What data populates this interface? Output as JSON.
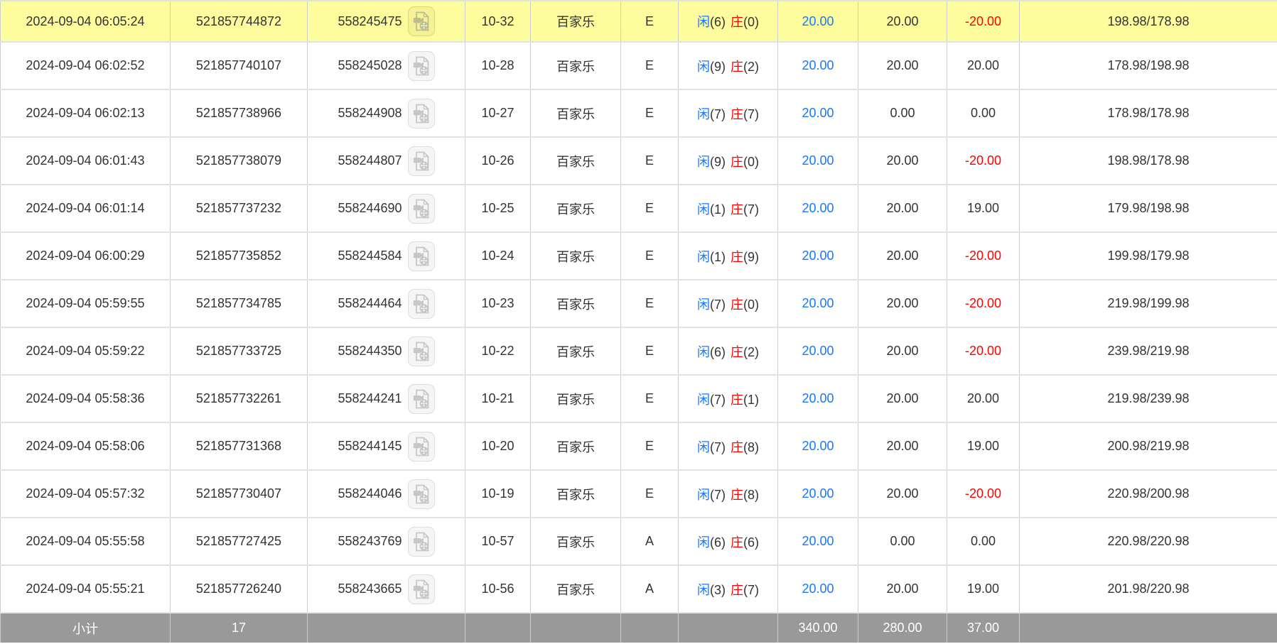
{
  "colors": {
    "highlight_row_bg": "#fdfd9e",
    "blue": "#1677ff",
    "red": "#ff0000",
    "text": "#333333",
    "border": "#cccccc",
    "footer_bg": "#999999",
    "footer_text": "#ffffff"
  },
  "betting_table": {
    "rows": [
      {
        "time": "2024-09-04 06:05:24",
        "order_id": "521857744872",
        "round_id": "558245475",
        "table_no": "10-32",
        "game_type": "百家乐",
        "zone": "E",
        "player_label": "闲",
        "player_score": "(6)",
        "banker_label": "庄",
        "banker_score": "(0)",
        "bet_amount": "20.00",
        "valid_bet": "20.00",
        "win_loss": "-20.00",
        "balance": "198.98/178.98",
        "highlighted": true
      },
      {
        "time": "2024-09-04 06:02:52",
        "order_id": "521857740107",
        "round_id": "558245028",
        "table_no": "10-28",
        "game_type": "百家乐",
        "zone": "E",
        "player_label": "闲",
        "player_score": "(9)",
        "banker_label": "庄",
        "banker_score": "(2)",
        "bet_amount": "20.00",
        "valid_bet": "20.00",
        "win_loss": "20.00",
        "balance": "178.98/198.98",
        "highlighted": false
      },
      {
        "time": "2024-09-04 06:02:13",
        "order_id": "521857738966",
        "round_id": "558244908",
        "table_no": "10-27",
        "game_type": "百家乐",
        "zone": "E",
        "player_label": "闲",
        "player_score": "(7)",
        "banker_label": "庄",
        "banker_score": "(7)",
        "bet_amount": "20.00",
        "valid_bet": "0.00",
        "win_loss": "0.00",
        "balance": "178.98/178.98",
        "highlighted": false
      },
      {
        "time": "2024-09-04 06:01:43",
        "order_id": "521857738079",
        "round_id": "558244807",
        "table_no": "10-26",
        "game_type": "百家乐",
        "zone": "E",
        "player_label": "闲",
        "player_score": "(9)",
        "banker_label": "庄",
        "banker_score": "(0)",
        "bet_amount": "20.00",
        "valid_bet": "20.00",
        "win_loss": "-20.00",
        "balance": "198.98/178.98",
        "highlighted": false
      },
      {
        "time": "2024-09-04 06:01:14",
        "order_id": "521857737232",
        "round_id": "558244690",
        "table_no": "10-25",
        "game_type": "百家乐",
        "zone": "E",
        "player_label": "闲",
        "player_score": "(1)",
        "banker_label": "庄",
        "banker_score": "(7)",
        "bet_amount": "20.00",
        "valid_bet": "20.00",
        "win_loss": "19.00",
        "balance": "179.98/198.98",
        "highlighted": false
      },
      {
        "time": "2024-09-04 06:00:29",
        "order_id": "521857735852",
        "round_id": "558244584",
        "table_no": "10-24",
        "game_type": "百家乐",
        "zone": "E",
        "player_label": "闲",
        "player_score": "(1)",
        "banker_label": "庄",
        "banker_score": "(9)",
        "bet_amount": "20.00",
        "valid_bet": "20.00",
        "win_loss": "-20.00",
        "balance": "199.98/179.98",
        "highlighted": false
      },
      {
        "time": "2024-09-04 05:59:55",
        "order_id": "521857734785",
        "round_id": "558244464",
        "table_no": "10-23",
        "game_type": "百家乐",
        "zone": "E",
        "player_label": "闲",
        "player_score": "(7)",
        "banker_label": "庄",
        "banker_score": "(0)",
        "bet_amount": "20.00",
        "valid_bet": "20.00",
        "win_loss": "-20.00",
        "balance": "219.98/199.98",
        "highlighted": false
      },
      {
        "time": "2024-09-04 05:59:22",
        "order_id": "521857733725",
        "round_id": "558244350",
        "table_no": "10-22",
        "game_type": "百家乐",
        "zone": "E",
        "player_label": "闲",
        "player_score": "(6)",
        "banker_label": "庄",
        "banker_score": "(2)",
        "bet_amount": "20.00",
        "valid_bet": "20.00",
        "win_loss": "-20.00",
        "balance": "239.98/219.98",
        "highlighted": false
      },
      {
        "time": "2024-09-04 05:58:36",
        "order_id": "521857732261",
        "round_id": "558244241",
        "table_no": "10-21",
        "game_type": "百家乐",
        "zone": "E",
        "player_label": "闲",
        "player_score": "(7)",
        "banker_label": "庄",
        "banker_score": "(1)",
        "bet_amount": "20.00",
        "valid_bet": "20.00",
        "win_loss": "20.00",
        "balance": "219.98/239.98",
        "highlighted": false
      },
      {
        "time": "2024-09-04 05:58:06",
        "order_id": "521857731368",
        "round_id": "558244145",
        "table_no": "10-20",
        "game_type": "百家乐",
        "zone": "E",
        "player_label": "闲",
        "player_score": "(7)",
        "banker_label": "庄",
        "banker_score": "(8)",
        "bet_amount": "20.00",
        "valid_bet": "20.00",
        "win_loss": "19.00",
        "balance": "200.98/219.98",
        "highlighted": false
      },
      {
        "time": "2024-09-04 05:57:32",
        "order_id": "521857730407",
        "round_id": "558244046",
        "table_no": "10-19",
        "game_type": "百家乐",
        "zone": "E",
        "player_label": "闲",
        "player_score": "(7)",
        "banker_label": "庄",
        "banker_score": "(8)",
        "bet_amount": "20.00",
        "valid_bet": "20.00",
        "win_loss": "-20.00",
        "balance": "220.98/200.98",
        "highlighted": false
      },
      {
        "time": "2024-09-04 05:55:58",
        "order_id": "521857727425",
        "round_id": "558243769",
        "table_no": "10-57",
        "game_type": "百家乐",
        "zone": "A",
        "player_label": "闲",
        "player_score": "(6)",
        "banker_label": "庄",
        "banker_score": "(6)",
        "bet_amount": "20.00",
        "valid_bet": "0.00",
        "win_loss": "0.00",
        "balance": "220.98/220.98",
        "highlighted": false
      },
      {
        "time": "2024-09-04 05:55:21",
        "order_id": "521857726240",
        "round_id": "558243665",
        "table_no": "10-56",
        "game_type": "百家乐",
        "zone": "A",
        "player_label": "闲",
        "player_score": "(3)",
        "banker_label": "庄",
        "banker_score": "(7)",
        "bet_amount": "20.00",
        "valid_bet": "20.00",
        "win_loss": "19.00",
        "balance": "201.98/220.98",
        "highlighted": false
      }
    ],
    "footer": {
      "label": "小计",
      "count": "17",
      "bet_amount_total": "340.00",
      "valid_bet_total": "280.00",
      "win_loss_total": "37.00"
    }
  }
}
